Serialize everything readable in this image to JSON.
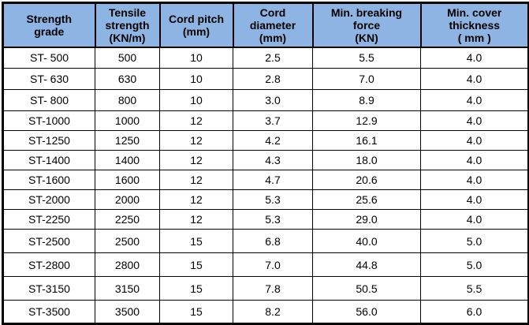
{
  "colors": {
    "header_bg": "#8DB4E2",
    "border": "#000000",
    "text": "#000000",
    "row_bg": "#FFFFFF"
  },
  "table": {
    "columns": [
      "Strength\ngrade",
      "Tensile\nstrength\n(KN/m)",
      "Cord pitch\n(mm)",
      "Cord\ndiameter\n(mm)",
      "Min. breaking\nforce\n(KN)",
      "Min. cover\nthickness\n( mm )"
    ],
    "rows": [
      [
        "ST- 500",
        "500",
        "10",
        "2.5",
        "5.5",
        "4.0"
      ],
      [
        "ST- 630",
        "630",
        "10",
        "2.8",
        "7.0",
        "4.0"
      ],
      [
        "ST- 800",
        "800",
        "10",
        "3.0",
        "8.9",
        "4.0"
      ],
      [
        "ST-1000",
        "1000",
        "12",
        "3.7",
        "12.9",
        "4.0"
      ],
      [
        "ST-1250",
        "1250",
        "12",
        "4.2",
        "16.1",
        "4.0"
      ],
      [
        "ST-1400",
        "1400",
        "12",
        "4.3",
        "18.0",
        "4.0"
      ],
      [
        "ST-1600",
        "1600",
        "12",
        "4.7",
        "20.6",
        "4.0"
      ],
      [
        "ST-2000",
        "2000",
        "12",
        "5.3",
        "25.6",
        "4.0"
      ],
      [
        "ST-2250",
        "2250",
        "12",
        "5.3",
        "29.0",
        "4.0"
      ],
      [
        "ST-2500",
        "2500",
        "15",
        "6.8",
        "40.0",
        "5.0"
      ],
      [
        "ST-2800",
        "2800",
        "15",
        "7.0",
        "44.8",
        "5.0"
      ],
      [
        "ST-3150",
        "3150",
        "15",
        "7.8",
        "50.5",
        "5.5"
      ],
      [
        "ST-3500",
        "3500",
        "15",
        "8.2",
        "56.0",
        "6.0"
      ]
    ]
  }
}
